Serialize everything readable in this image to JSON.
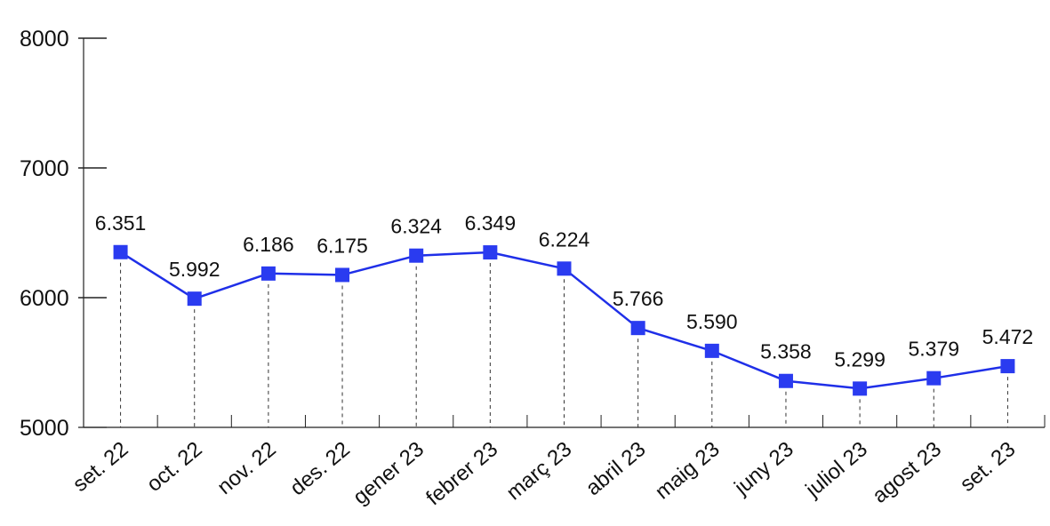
{
  "chart_data": {
    "type": "line",
    "categories": [
      "set. 22",
      "oct. 22",
      "nov. 22",
      "des. 22",
      "gener 23",
      "febrer 23",
      "març 23",
      "abril 23",
      "maig 23",
      "juny 23",
      "juliol 23",
      "agost 23",
      "set. 23"
    ],
    "values": [
      6351,
      5992,
      6186,
      6175,
      6324,
      6349,
      6224,
      5766,
      5590,
      5358,
      5299,
      5379,
      5472
    ],
    "data_labels": [
      "6.351",
      "5.992",
      "6.186",
      "6.175",
      "6.324",
      "6.349",
      "6.224",
      "5.766",
      "5.590",
      "5.358",
      "5.299",
      "5.379",
      "5.472"
    ],
    "yticks": [
      5000,
      6000,
      7000,
      8000
    ],
    "ytick_labels": [
      "5000",
      "6000",
      "7000",
      "8000"
    ],
    "ylim": [
      5000,
      8000
    ],
    "title": "",
    "xlabel": "",
    "ylabel": "",
    "grid": false,
    "line_color": "#1f2fe8",
    "marker_color": "#2a3bf0",
    "axis_color": "#222222"
  }
}
